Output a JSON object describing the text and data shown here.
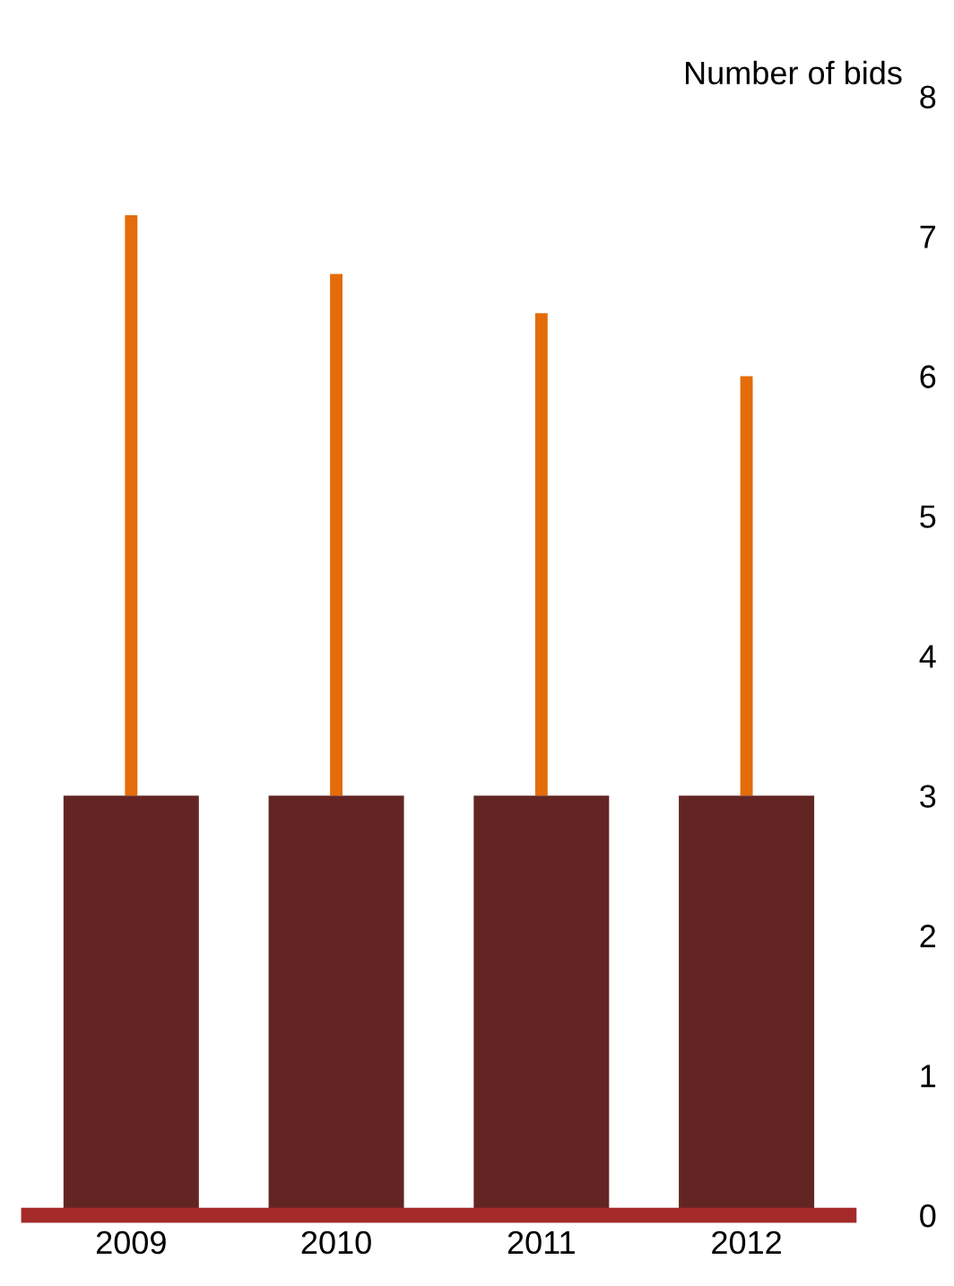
{
  "chart_data": {
    "type": "bar",
    "ylabel": "Number of bids",
    "categories": [
      "2009",
      "2010",
      "2011",
      "2012"
    ],
    "values": [
      3,
      3,
      3,
      3
    ],
    "color": "#632523",
    "errors": [
      [
        3,
        7.15
      ],
      [
        3,
        6.73
      ],
      [
        3,
        6.45
      ],
      [
        3,
        6.0
      ]
    ],
    "ylim": [
      0,
      8
    ],
    "yticks": [
      0,
      1,
      2,
      3,
      4,
      5,
      6,
      7,
      8
    ],
    "grid": false
  }
}
